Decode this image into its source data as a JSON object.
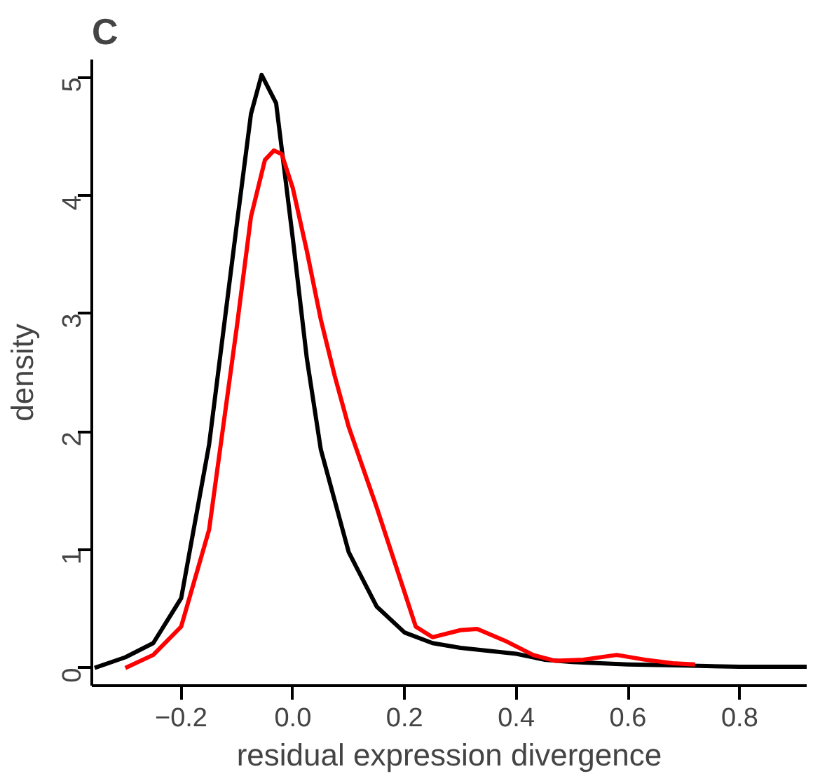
{
  "chart_data": {
    "type": "line",
    "title": "C",
    "xlabel": "residual expression divergence",
    "ylabel": "density",
    "xlim": [
      -0.36,
      0.92
    ],
    "ylim": [
      -0.15,
      5.15
    ],
    "xticks": [
      {
        "value": -0.2,
        "label": "−0.2"
      },
      {
        "value": 0.0,
        "label": "0.0"
      },
      {
        "value": 0.2,
        "label": "0.2"
      },
      {
        "value": 0.4,
        "label": "0.4"
      },
      {
        "value": 0.6,
        "label": "0.6"
      },
      {
        "value": 0.8,
        "label": "0.8"
      }
    ],
    "yticks": [
      0,
      1,
      2,
      3,
      4,
      5
    ],
    "grid": false,
    "line_style": "solid",
    "marker": "none",
    "series": [
      {
        "color": "#000000",
        "x": [
          -0.355,
          -0.3,
          -0.25,
          -0.2,
          -0.15,
          -0.1,
          -0.075,
          -0.056,
          -0.03,
          0.0,
          0.025,
          0.05,
          0.1,
          0.15,
          0.2,
          0.25,
          0.3,
          0.4,
          0.45,
          0.5,
          0.6,
          0.7,
          0.8,
          0.92
        ],
        "values": [
          0.0,
          0.09,
          0.21,
          0.59,
          1.89,
          3.77,
          4.69,
          5.02,
          4.78,
          3.63,
          2.62,
          1.85,
          0.98,
          0.52,
          0.3,
          0.21,
          0.17,
          0.12,
          0.07,
          0.05,
          0.03,
          0.02,
          0.01,
          0.01
        ]
      },
      {
        "color": "#ff0000",
        "x": [
          -0.3,
          -0.25,
          -0.2,
          -0.15,
          -0.1,
          -0.075,
          -0.05,
          -0.034,
          -0.02,
          0.0,
          0.025,
          0.05,
          0.075,
          0.1,
          0.15,
          0.2,
          0.22,
          0.25,
          0.3,
          0.33,
          0.38,
          0.43,
          0.47,
          0.52,
          0.58,
          0.63,
          0.68,
          0.72
        ],
        "values": [
          0.0,
          0.11,
          0.35,
          1.17,
          2.9,
          3.82,
          4.3,
          4.38,
          4.35,
          4.06,
          3.53,
          2.95,
          2.47,
          2.04,
          1.36,
          0.64,
          0.35,
          0.26,
          0.32,
          0.33,
          0.23,
          0.11,
          0.06,
          0.07,
          0.11,
          0.07,
          0.04,
          0.03
        ]
      }
    ]
  }
}
